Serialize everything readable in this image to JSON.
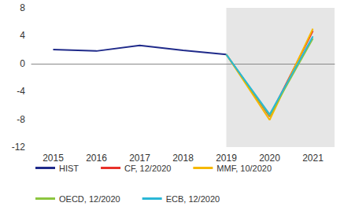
{
  "chart_data": {
    "type": "line",
    "categories": [
      "2015",
      "2016",
      "2017",
      "2018",
      "2019",
      "2020",
      "2021"
    ],
    "series": [
      {
        "name": "HIST",
        "color": "#1f2a8a",
        "values": [
          2.0,
          1.8,
          2.6,
          1.9,
          1.3,
          null,
          null
        ]
      },
      {
        "name": "CF, 12/2020",
        "color": "#e8312a",
        "values": [
          null,
          null,
          null,
          null,
          1.3,
          -7.6,
          4.7
        ]
      },
      {
        "name": "MMF, 10/2020",
        "color": "#f5b800",
        "values": [
          null,
          null,
          null,
          null,
          1.3,
          -8.1,
          5.0
        ]
      },
      {
        "name": "OECD, 12/2020",
        "color": "#8cc63f",
        "values": [
          null,
          null,
          null,
          null,
          1.3,
          -7.5,
          3.6
        ]
      },
      {
        "name": "ECB, 12/2020",
        "color": "#2ab7d6",
        "values": [
          null,
          null,
          null,
          null,
          1.3,
          -7.3,
          3.9
        ]
      }
    ],
    "ylim": [
      -12,
      8
    ],
    "yticks": [
      -12,
      -8,
      -4,
      0,
      4,
      8
    ],
    "grid": false,
    "legend": "bottom"
  }
}
